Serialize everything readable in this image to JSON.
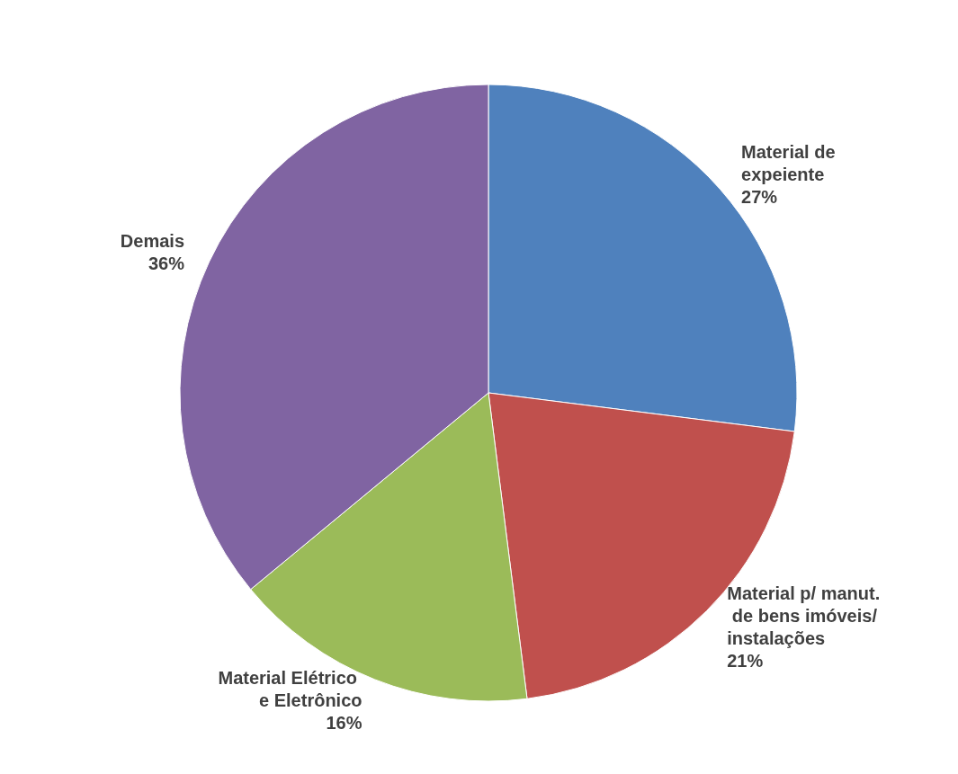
{
  "chart_data": {
    "type": "pie",
    "categories": [
      "Material de expeiente",
      "Material p/ manut. de bens imóveis/instalações",
      "Material Elétrico e Eletrônico",
      "Demais"
    ],
    "values": [
      27,
      21,
      16,
      36
    ],
    "value_labels": [
      "27%",
      "21%",
      "16%",
      "36%"
    ],
    "colors": [
      "#4f81bd",
      "#c0504d",
      "#9bbb59",
      "#8064a2"
    ]
  }
}
